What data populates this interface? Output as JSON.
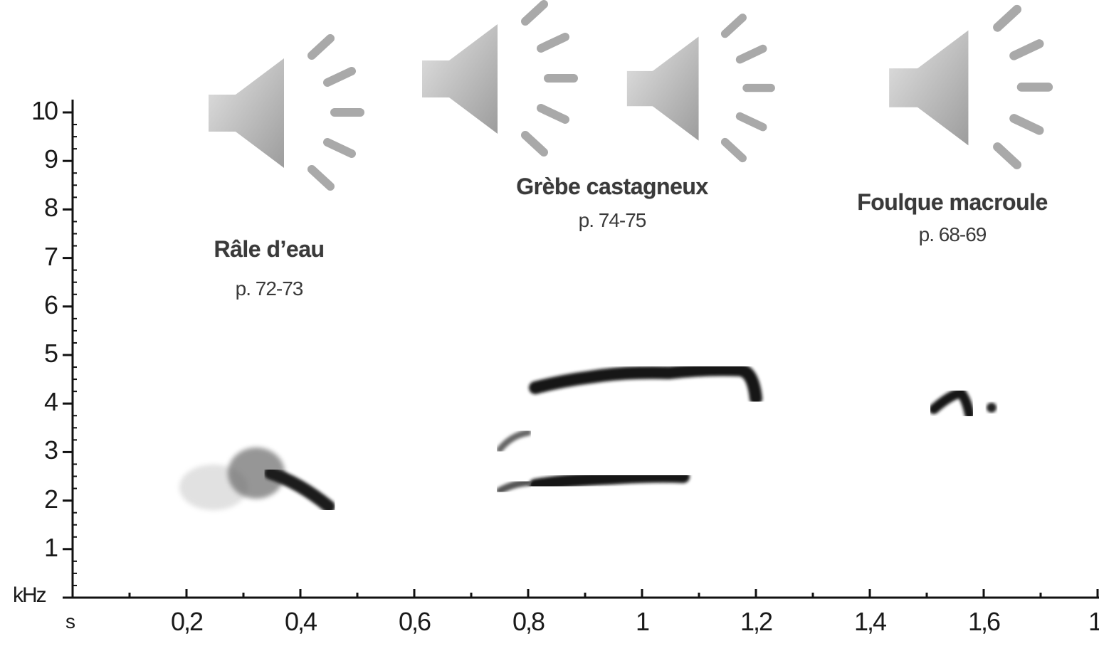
{
  "axes": {
    "y_unit": "kHz",
    "x_unit": "s",
    "y_ticks": [
      "1",
      "2",
      "3",
      "4",
      "5",
      "6",
      "7",
      "8",
      "9",
      "10"
    ],
    "x_ticks": [
      "0,2",
      "0,4",
      "0,6",
      "0,8",
      "1",
      "1,2",
      "1,4",
      "1,6",
      "1,"
    ]
  },
  "species": [
    {
      "name": "Râle d’eau",
      "page": "p. 72-73"
    },
    {
      "name": "Grèbe castagneux",
      "page": "p. 74-75"
    },
    {
      "name": "Foulque macroule",
      "page": "p. 68-69"
    }
  ],
  "audio_buttons": [
    {
      "icon": "speaker-icon"
    },
    {
      "icon": "speaker-icon"
    },
    {
      "icon": "speaker-icon"
    },
    {
      "icon": "speaker-icon"
    }
  ],
  "colors": {
    "ink": "#111111",
    "speaker_fill": "#bdbdbd",
    "speaker_edge": "#ffffff"
  }
}
